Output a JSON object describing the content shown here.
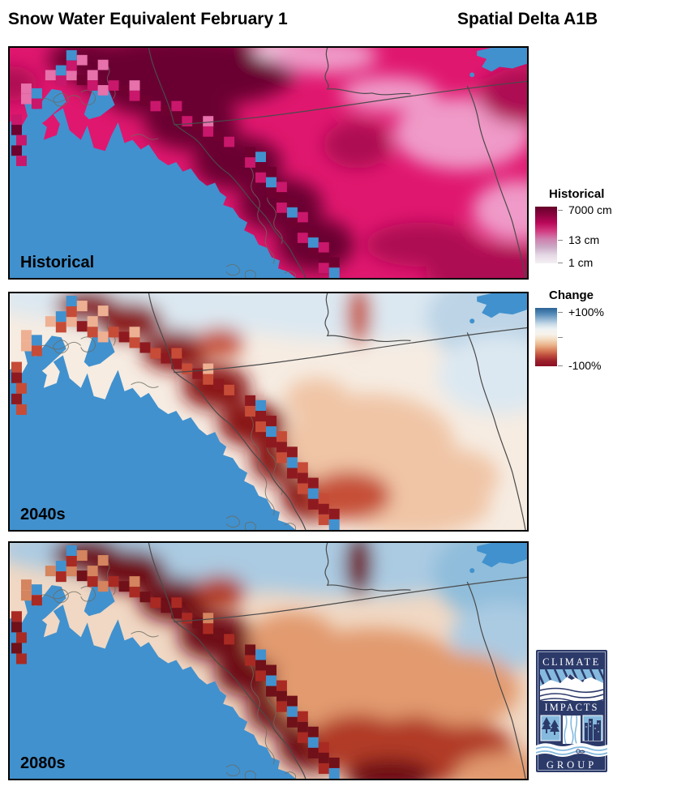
{
  "header": {
    "title_left": "Snow Water Equivalent February 1",
    "title_right": "Spatial Delta A1B"
  },
  "maps": [
    {
      "label": "Historical",
      "palette": {
        "base": "#e0176f",
        "dark": "#6b0130",
        "mid": "#ad0853",
        "light": "#ef9ac8",
        "pale": "#f4d7e9",
        "cool": "#e0176f",
        "cell_dark": "#6e0130",
        "cell_mid": "#c9176b",
        "cell_light": "#e671ab"
      }
    },
    {
      "label": "2040s",
      "palette": {
        "base": "#f6ece2",
        "dark": "#8a1518",
        "mid": "#c65038",
        "light": "#f0c5a6",
        "pale": "#dce8f1",
        "cool": "#bcd4e6",
        "cell_dark": "#8e1a20",
        "cell_mid": "#c64c38",
        "cell_light": "#eeb092"
      }
    },
    {
      "label": "2080s",
      "palette": {
        "base": "#f0d8c4",
        "dark": "#6e0a14",
        "mid": "#b13a26",
        "light": "#e29a6e",
        "pale": "#abcbe2",
        "cool": "#8fbddb",
        "cell_dark": "#701019",
        "cell_mid": "#a92a23",
        "cell_light": "#d4845e"
      }
    }
  ],
  "shared_colors": {
    "ocean": "#4191ce",
    "admin_border": "#4a4a4a",
    "coast_detail": "#6b6b60",
    "frame": "#000000"
  },
  "legends": [
    {
      "title": "Historical",
      "ticks": [
        "7000 cm",
        "13 cm",
        "1 cm"
      ],
      "tick_pos": [
        4,
        41,
        69
      ],
      "gradient": [
        "#650029",
        "#8c0340",
        "#b9085a",
        "#d23a80",
        "#cf7fae",
        "#cbaac6",
        "#e6d9e6",
        "#f5f0f4"
      ]
    },
    {
      "title": "Change",
      "ticks": [
        "+100%",
        "",
        "-100%"
      ],
      "tick_pos": [
        5,
        36,
        71
      ],
      "gradient": [
        "#2a6294",
        "#4d86b4",
        "#88afd0",
        "#c6d9e7",
        "#eef2f3",
        "#f8f2ea",
        "#f3d9bd",
        "#eab38a",
        "#d97f5b",
        "#bd4b3c",
        "#9c1f2a",
        "#8a0f23"
      ]
    }
  ],
  "logo": {
    "lines": [
      "CLIMATE",
      "IMPACTS",
      "GROUP"
    ],
    "navy": "#2c3a6a",
    "light_blue": "#85bade",
    "white": "#ffffff"
  }
}
